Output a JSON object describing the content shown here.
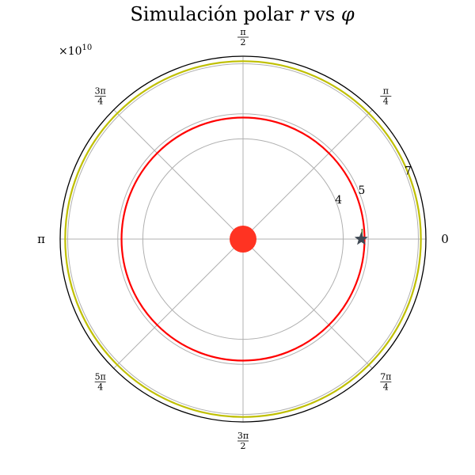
{
  "chart_data": {
    "type": "polar",
    "title": "Simulación polar r vs φ",
    "title_parts": {
      "text": "Simulación polar ",
      "var_r": "r",
      "mid": " vs ",
      "var_phi": "φ"
    },
    "radial_scale_label": {
      "base": "×10",
      "exp": "10"
    },
    "rlim": [
      0,
      7.3
    ],
    "radial_ticks": [
      {
        "value": 4,
        "label": "4"
      },
      {
        "value": 5,
        "label": "5"
      },
      {
        "value": 7,
        "label": "7"
      }
    ],
    "angular_ticks": [
      {
        "deg": 0,
        "kind": "plain",
        "label": "0"
      },
      {
        "deg": 45,
        "kind": "frac",
        "num": "π",
        "den": "4"
      },
      {
        "deg": 90,
        "kind": "frac",
        "num": "π",
        "den": "2"
      },
      {
        "deg": 135,
        "kind": "frac",
        "num": "3π",
        "den": "4"
      },
      {
        "deg": 180,
        "kind": "plain",
        "label": "π"
      },
      {
        "deg": 225,
        "kind": "frac",
        "num": "5π",
        "den": "4"
      },
      {
        "deg": 270,
        "kind": "frac",
        "num": "3π",
        "den": "2"
      },
      {
        "deg": 315,
        "kind": "frac",
        "num": "7π",
        "den": "4"
      }
    ],
    "grid": true,
    "orbits": [
      {
        "r": 4.85,
        "color": "#ff0000"
      },
      {
        "r": 7.1,
        "color": "#bfbf00"
      }
    ],
    "central_body": {
      "r": 0,
      "phi": 0,
      "color": "#ff3322"
    },
    "marker": {
      "r": 4.72,
      "phi": 0,
      "symbol": "star",
      "color": "#404a55"
    },
    "colors": {
      "frame": "#000000",
      "grid": "#b0b0b0"
    }
  }
}
